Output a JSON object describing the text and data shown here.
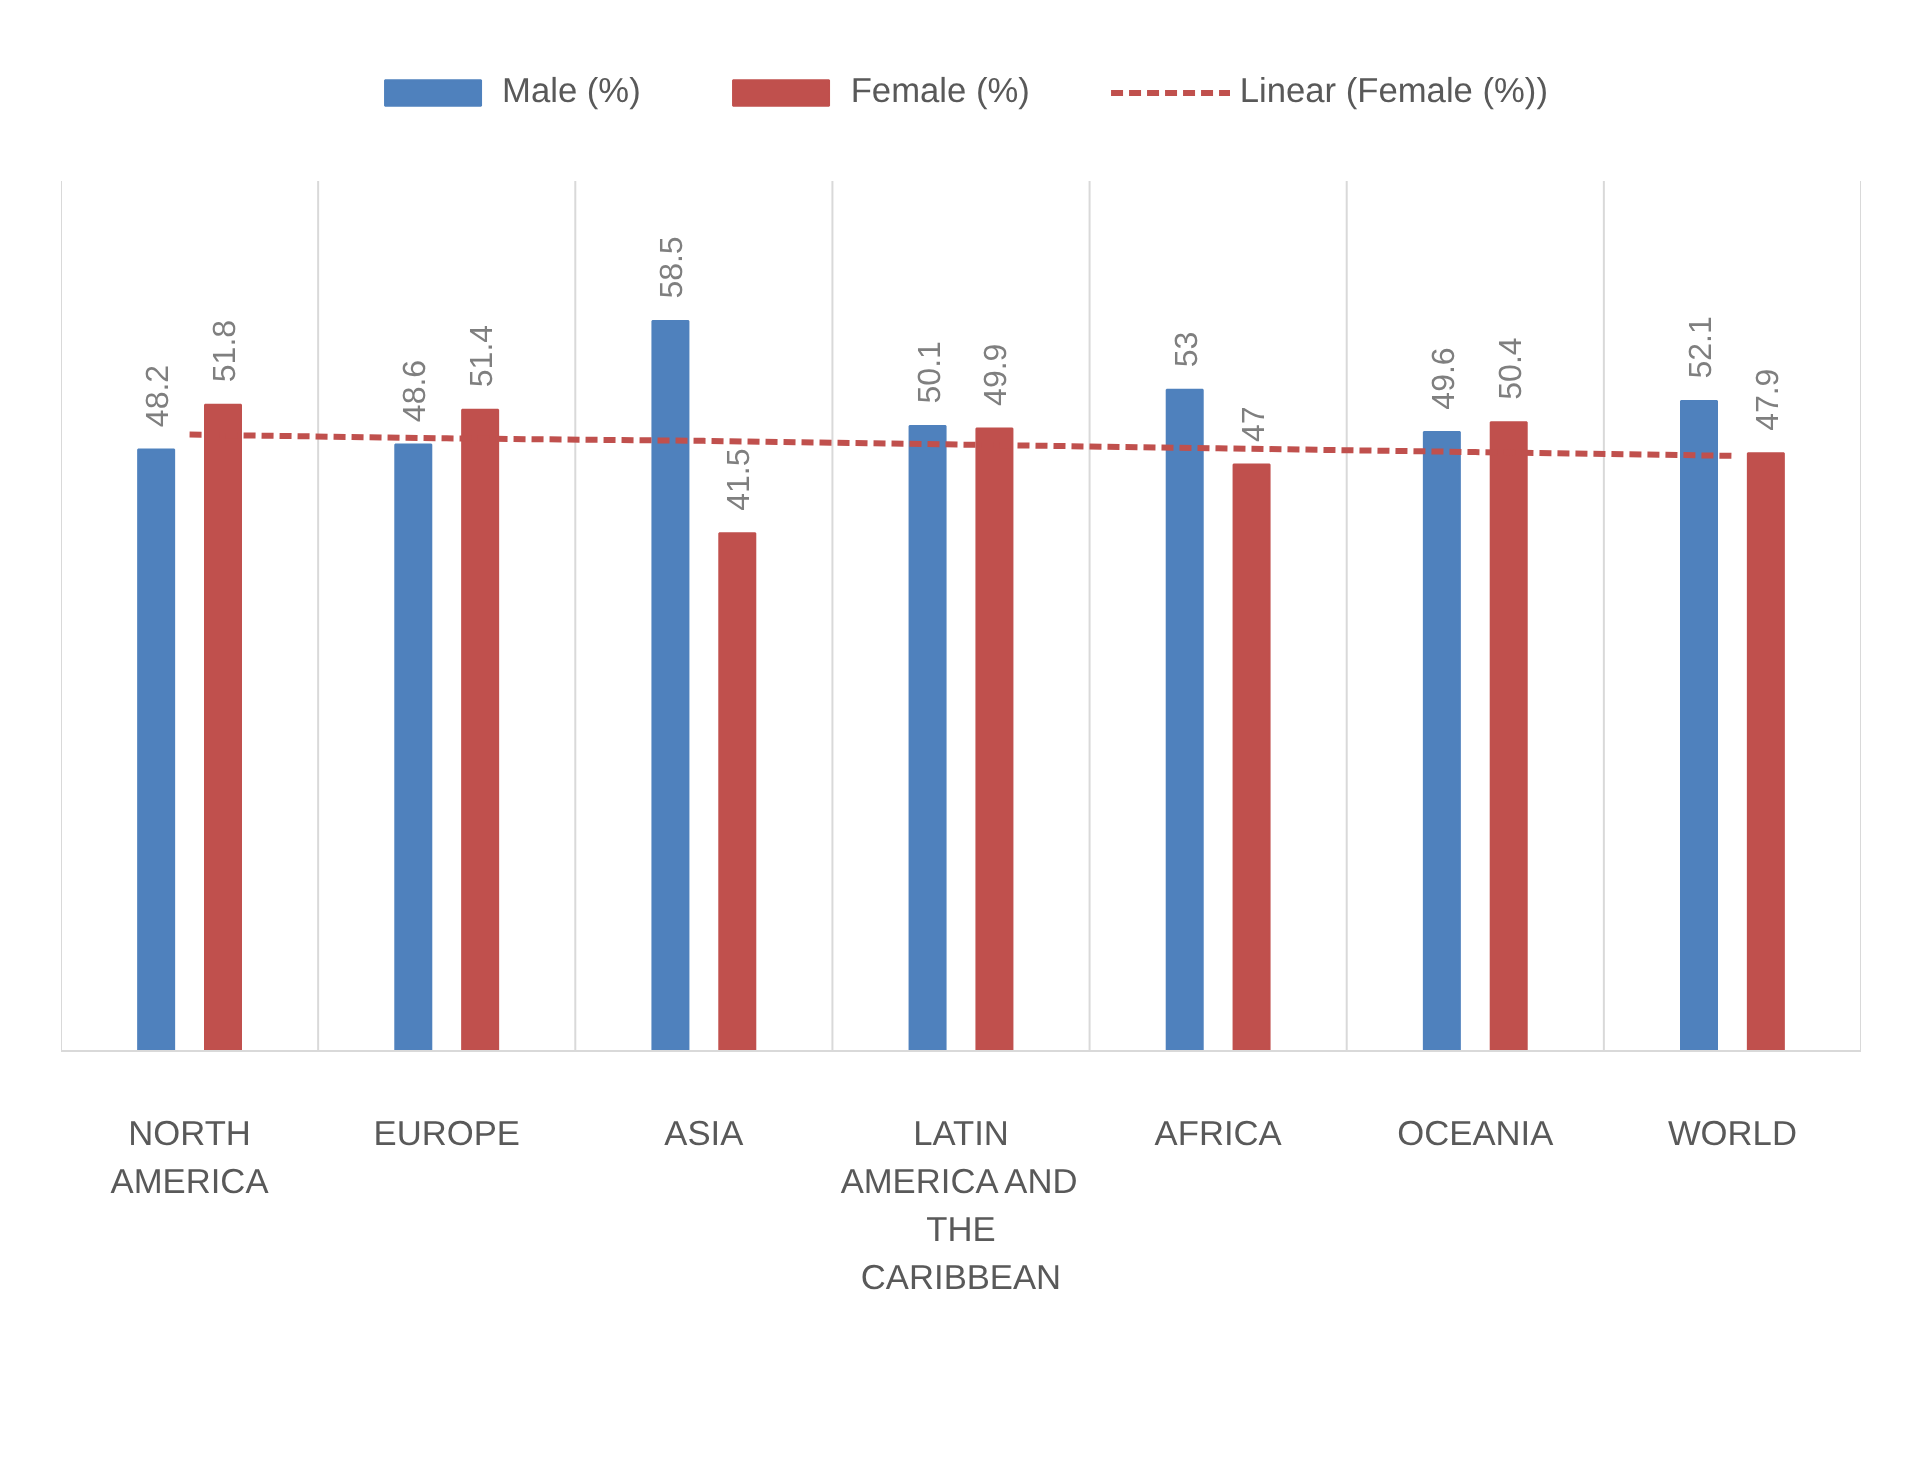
{
  "chart_data": {
    "type": "bar",
    "categories": [
      "NORTH AMERICA",
      "EUROPE",
      "ASIA",
      "LATIN AMERICA AND THE CARIBBEAN",
      "AFRICA",
      "OCEANIA",
      "WORLD"
    ],
    "series": [
      {
        "name": "Male (%)",
        "color": "#4f81bd",
        "values": [
          48.2,
          48.6,
          58.5,
          50.1,
          53,
          49.6,
          52.1
        ],
        "value_labels": [
          "48.2",
          "48.6",
          "58.5",
          "50.1",
          "53",
          "49.6",
          "52.1"
        ]
      },
      {
        "name": "Female (%)",
        "color": "#c0504d",
        "values": [
          51.8,
          51.4,
          41.5,
          49.9,
          47,
          50.4,
          47.9
        ],
        "value_labels": [
          "51.8",
          "51.4",
          "41.5",
          "49.9",
          "47",
          "50.4",
          "47.9"
        ]
      },
      {
        "name": "Linear (Female (%))",
        "type": "line",
        "color": "#c0504d",
        "line_style": "dashed",
        "values": [
          49.4,
          49.1,
          48.9,
          48.6,
          48.3,
          48.0,
          47.7
        ]
      }
    ],
    "tick_labels": "x",
    "grid": "x",
    "legend": "top"
  }
}
